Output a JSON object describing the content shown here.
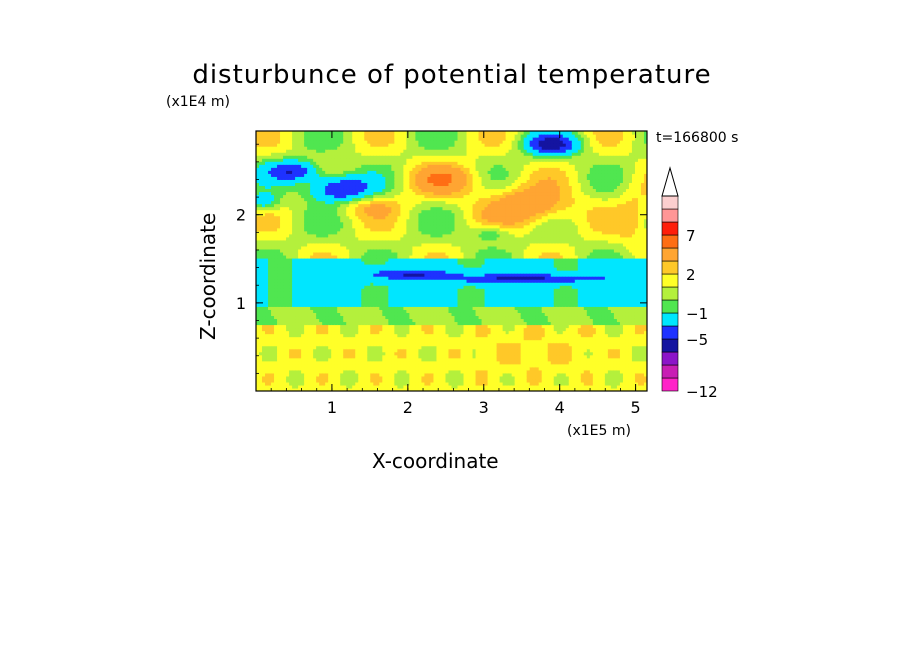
{
  "chart_data": {
    "type": "heatmap",
    "title": "disturbunce of potential temperature",
    "xlabel": "X-coordinate",
    "ylabel": "Z-coordinate",
    "x_unit": "(x1E5 m)",
    "y_unit": "(x1E4 m)",
    "annotation": "t=166800 s",
    "xlim": [
      0,
      5.15
    ],
    "ylim": [
      0,
      2.95
    ],
    "x_ticks": [
      1,
      2,
      3,
      4,
      5
    ],
    "x_tick_labels": [
      "1",
      "2",
      "3",
      "4",
      "5"
    ],
    "y_ticks": [
      1,
      2
    ],
    "y_tick_labels": [
      "1",
      "2"
    ],
    "colorbar": {
      "levels": [
        -12,
        -10,
        -8,
        -7,
        -5,
        -3,
        -1,
        0,
        1,
        2,
        3,
        5,
        7,
        9,
        12
      ],
      "colors": [
        "#ff22c8",
        "#c81eb4",
        "#8c14c8",
        "#1414a0",
        "#1e32ff",
        "#00e6ff",
        "#50e650",
        "#b4f03c",
        "#ffff28",
        "#ffc828",
        "#ffa532",
        "#ff6e14",
        "#ff1e0a",
        "#ff9696",
        "#fbcfcf"
      ],
      "tick_values": [
        7,
        2,
        -1,
        -5,
        -12
      ],
      "tick_labels": [
        "7",
        "2",
        "−1",
        "−5",
        "−12"
      ],
      "top_arrow_color": "#ffffff"
    }
  }
}
